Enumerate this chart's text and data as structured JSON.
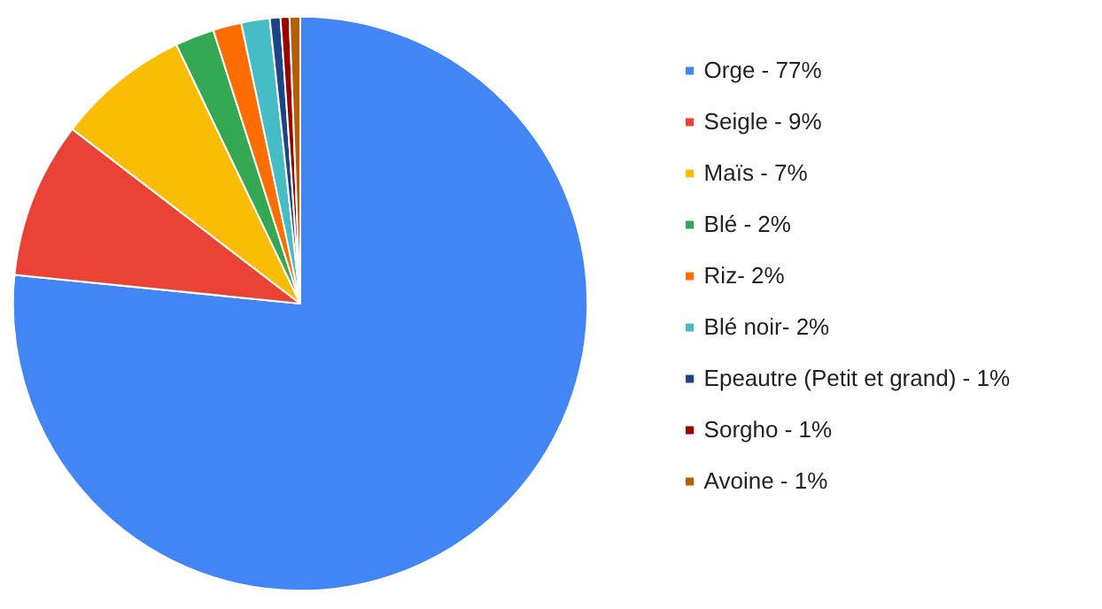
{
  "chart_data": {
    "type": "pie",
    "categories": [
      "Orge - 77%",
      "Seigle - 9%",
      "Maïs - 7%",
      "Blé - 2%",
      "Riz- 2%",
      "Blé noir- 2%",
      "Epeautre (Petit et grand) - 1%",
      "Sorgho - 1%",
      "Avoine - 1%"
    ],
    "values": [
      76.6,
      8.8,
      7.5,
      2.2,
      1.6,
      1.6,
      0.6,
      0.5,
      0.6
    ],
    "colors": [
      "#4285f4",
      "#ea4335",
      "#fbbc04",
      "#34a853",
      "#ff6d01",
      "#46bdc6",
      "#1c4587",
      "#990000",
      "#b45f06"
    ],
    "legend": "right"
  }
}
